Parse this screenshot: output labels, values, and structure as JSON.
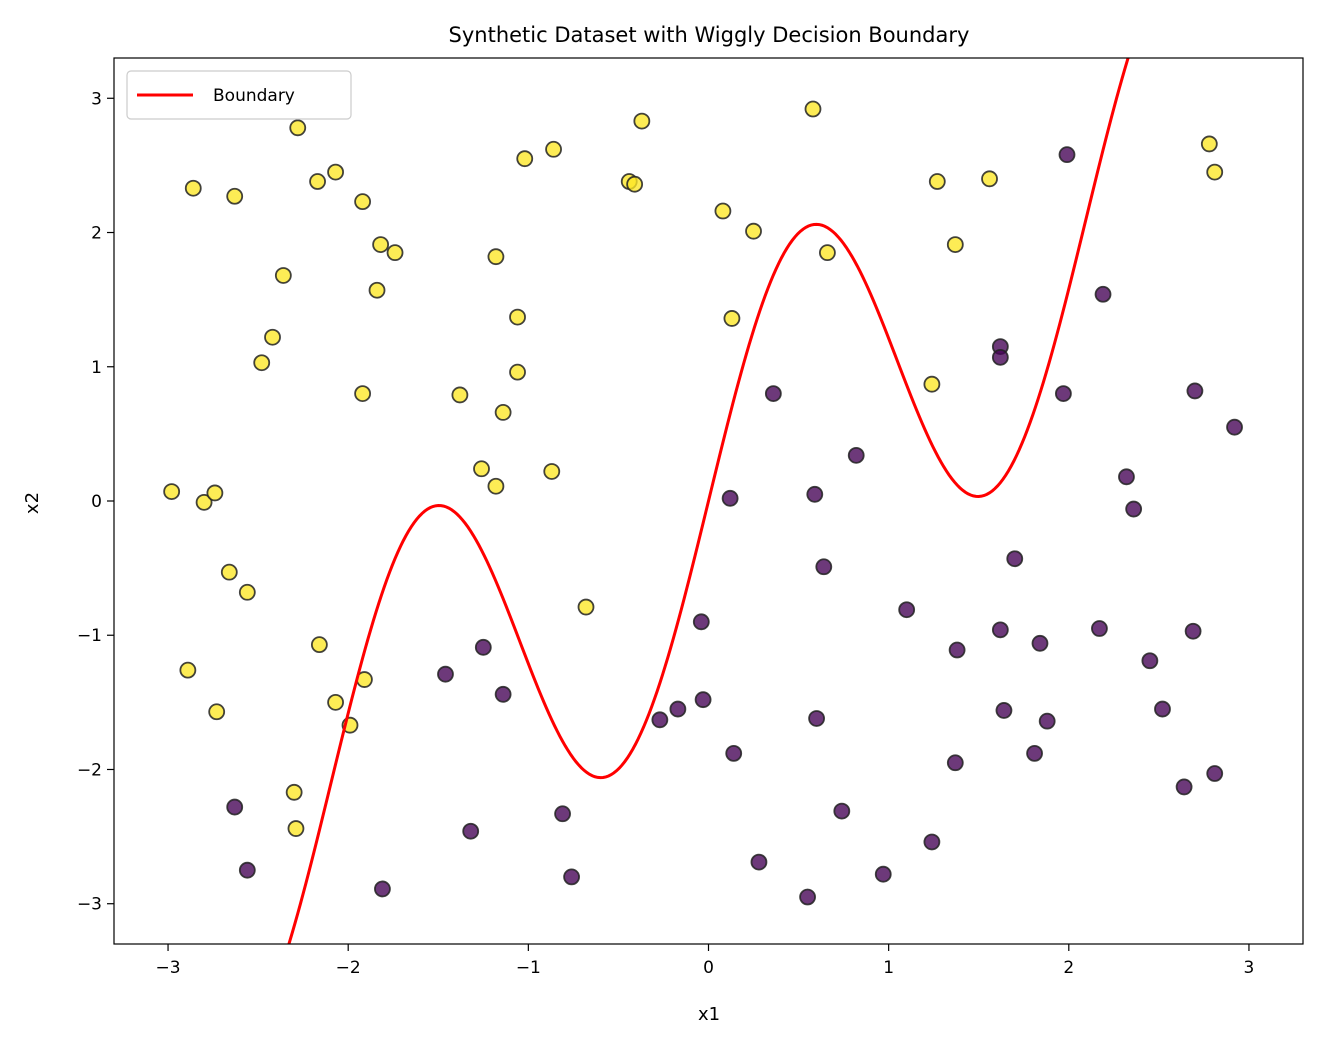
{
  "chart_data": {
    "type": "scatter",
    "title": "Synthetic Dataset with Wiggly Decision Boundary",
    "xlabel": "x1",
    "ylabel": "x2",
    "xlim": [
      -3.3,
      3.3
    ],
    "ylim": [
      -3.3,
      3.3
    ],
    "xticks": [
      -3,
      -2,
      -1,
      0,
      1,
      2,
      3
    ],
    "yticks": [
      -3,
      -2,
      -1,
      0,
      1,
      2,
      3
    ],
    "xtick_labels": [
      "−3",
      "−2",
      "−1",
      "0",
      "1",
      "2",
      "3"
    ],
    "ytick_labels": [
      "−3",
      "−2",
      "−1",
      "0",
      "1",
      "2",
      "3"
    ],
    "grid": false,
    "legend": {
      "position": "top-left",
      "entries": [
        "Boundary"
      ]
    },
    "boundary": {
      "name": "Boundary",
      "color": "#ff0000",
      "x_range": [
        -3,
        3
      ],
      "formula": "x2 = x1 + 1.5*sin(3*x1)"
    },
    "class_colors": {
      "above": "#fde725",
      "below": "#440154"
    },
    "points": {
      "above": [
        [
          -2.98,
          0.07
        ],
        [
          -2.86,
          2.33
        ],
        [
          -2.89,
          -1.26
        ],
        [
          -2.8,
          -0.01
        ],
        [
          -2.74,
          0.06
        ],
        [
          -2.73,
          -1.57
        ],
        [
          -2.66,
          -0.53
        ],
        [
          -2.63,
          2.27
        ],
        [
          -2.56,
          -0.68
        ],
        [
          -2.48,
          1.03
        ],
        [
          -2.42,
          1.22
        ],
        [
          -2.36,
          1.68
        ],
        [
          -2.3,
          -2.17
        ],
        [
          -2.29,
          -2.44
        ],
        [
          -2.28,
          2.78
        ],
        [
          -2.17,
          2.38
        ],
        [
          -2.16,
          -1.07
        ],
        [
          -2.07,
          2.45
        ],
        [
          -2.07,
          -1.5
        ],
        [
          -1.99,
          -1.67
        ],
        [
          -1.92,
          2.23
        ],
        [
          -1.92,
          0.8
        ],
        [
          -1.91,
          -1.33
        ],
        [
          -1.84,
          1.57
        ],
        [
          -1.82,
          1.91
        ],
        [
          -1.74,
          1.85
        ],
        [
          -1.38,
          0.79
        ],
        [
          -1.26,
          0.24
        ],
        [
          -1.18,
          0.11
        ],
        [
          -1.18,
          1.82
        ],
        [
          -1.14,
          0.66
        ],
        [
          -1.06,
          1.37
        ],
        [
          -1.06,
          0.96
        ],
        [
          -1.02,
          2.55
        ],
        [
          -0.87,
          0.22
        ],
        [
          -0.86,
          2.62
        ],
        [
          -0.68,
          -0.79
        ],
        [
          -0.44,
          2.38
        ],
        [
          -0.41,
          2.36
        ],
        [
          -0.37,
          2.83
        ],
        [
          0.08,
          2.16
        ],
        [
          0.13,
          1.36
        ],
        [
          0.25,
          2.01
        ],
        [
          0.58,
          2.92
        ],
        [
          0.66,
          1.85
        ],
        [
          1.24,
          0.87
        ],
        [
          1.27,
          2.38
        ],
        [
          1.37,
          1.91
        ],
        [
          1.56,
          2.4
        ],
        [
          2.78,
          2.66
        ],
        [
          2.81,
          2.45
        ]
      ],
      "below": [
        [
          -2.63,
          -2.28
        ],
        [
          -2.56,
          -2.75
        ],
        [
          -1.81,
          -2.89
        ],
        [
          -1.46,
          -1.29
        ],
        [
          -1.32,
          -2.46
        ],
        [
          -1.25,
          -1.09
        ],
        [
          -1.14,
          -1.44
        ],
        [
          -0.81,
          -2.33
        ],
        [
          -0.76,
          -2.8
        ],
        [
          -0.27,
          -1.63
        ],
        [
          -0.17,
          -1.55
        ],
        [
          -0.04,
          -0.9
        ],
        [
          -0.03,
          -1.48
        ],
        [
          0.12,
          0.02
        ],
        [
          0.14,
          -1.88
        ],
        [
          0.28,
          -2.69
        ],
        [
          0.36,
          0.8
        ],
        [
          0.55,
          -2.95
        ],
        [
          0.59,
          0.05
        ],
        [
          0.6,
          -1.62
        ],
        [
          0.64,
          -0.49
        ],
        [
          0.74,
          -2.31
        ],
        [
          0.82,
          0.34
        ],
        [
          0.97,
          -2.78
        ],
        [
          1.1,
          -0.81
        ],
        [
          1.24,
          -2.54
        ],
        [
          1.37,
          -1.95
        ],
        [
          1.38,
          -1.11
        ],
        [
          1.62,
          1.15
        ],
        [
          1.62,
          1.07
        ],
        [
          1.62,
          -0.96
        ],
        [
          1.64,
          -1.56
        ],
        [
          1.7,
          -0.43
        ],
        [
          1.81,
          -1.88
        ],
        [
          1.84,
          -1.06
        ],
        [
          1.88,
          -1.64
        ],
        [
          1.97,
          0.8
        ],
        [
          1.99,
          2.58
        ],
        [
          2.17,
          -0.95
        ],
        [
          2.19,
          1.54
        ],
        [
          2.32,
          0.18
        ],
        [
          2.36,
          -0.06
        ],
        [
          2.45,
          -1.19
        ],
        [
          2.52,
          -1.55
        ],
        [
          2.64,
          -2.13
        ],
        [
          2.69,
          -0.97
        ],
        [
          2.7,
          0.82
        ],
        [
          2.81,
          -2.03
        ],
        [
          2.92,
          0.55
        ]
      ]
    }
  }
}
